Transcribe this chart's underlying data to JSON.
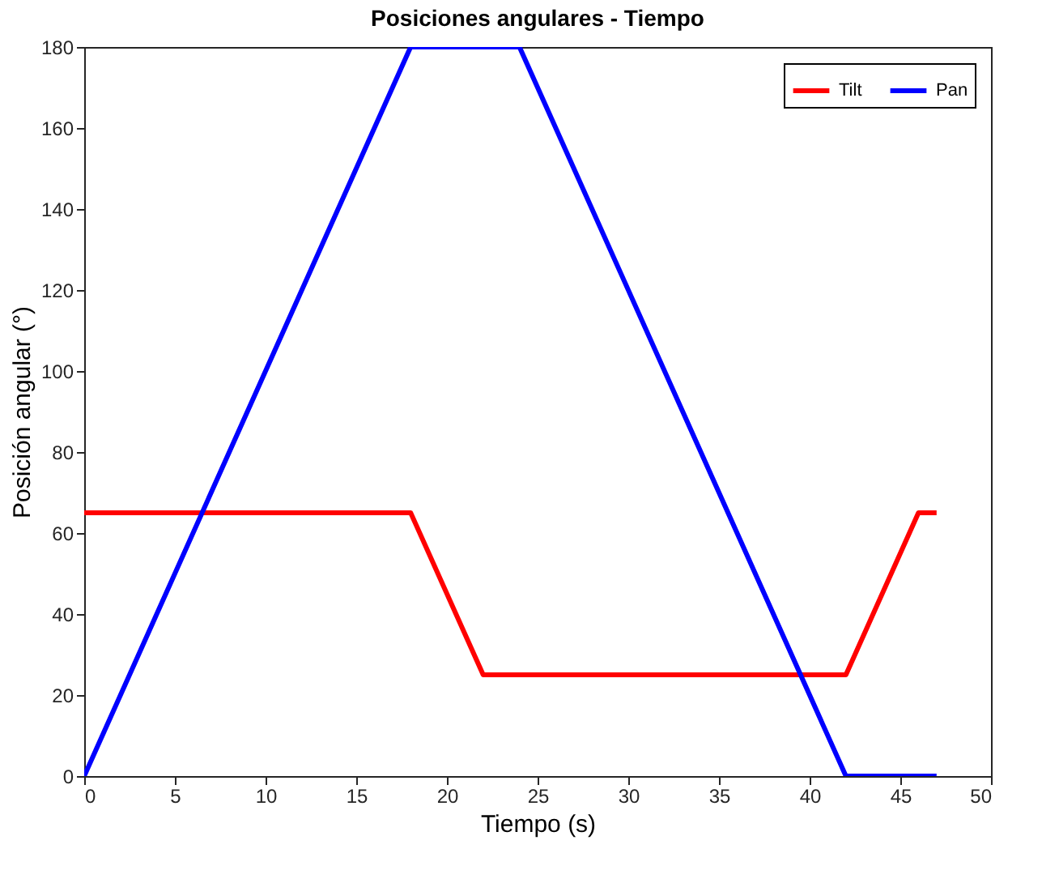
{
  "chart_data": {
    "type": "line",
    "title": "Posiciones angulares - Tiempo",
    "xlabel": "Tiempo (s)",
    "ylabel": "Posición angular (°)",
    "xlim": [
      0,
      50
    ],
    "xticks": [
      0,
      5,
      10,
      15,
      20,
      25,
      30,
      35,
      40,
      45,
      50
    ],
    "ylim": [
      0,
      180
    ],
    "yticks": [
      0,
      20,
      40,
      60,
      80,
      100,
      120,
      140,
      160,
      180
    ],
    "grid": false,
    "legend": "top right",
    "marker": "none",
    "line_style": "solid",
    "series": [
      {
        "name": "Tilt",
        "color": "#ff0000",
        "x": [
          0,
          18,
          22,
          42,
          46,
          47
        ],
        "values": [
          65,
          65,
          25,
          25,
          65,
          65
        ]
      },
      {
        "name": "Pan",
        "color": "#0000ff",
        "x": [
          0,
          18,
          24,
          42,
          47
        ],
        "values": [
          0,
          180,
          180,
          0,
          0
        ]
      }
    ]
  }
}
